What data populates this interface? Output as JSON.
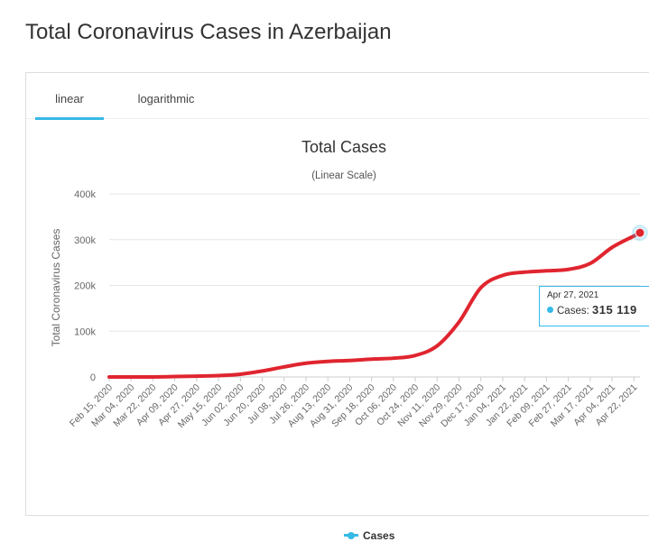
{
  "page": {
    "title": "Total Coronavirus Cases in Azerbaijan"
  },
  "tabs": {
    "linear": "linear",
    "logarithmic": "logarithmic",
    "active": "linear"
  },
  "colors": {
    "line": "#e0252f",
    "accent": "#36b9e6",
    "grid": "#e6e6e6",
    "axis_text": "#666666"
  },
  "tooltip": {
    "date": "Apr 27, 2021",
    "series": "Cases",
    "value": "315 119"
  },
  "chart_data": {
    "type": "line",
    "title": "Total Cases",
    "subtitle": "(Linear Scale)",
    "ylabel": "Total Coronavirus Cases",
    "xlabel": "",
    "ylim": [
      0,
      400000
    ],
    "yticks": [
      "0",
      "100k",
      "200k",
      "300k",
      "400k"
    ],
    "y_tick_values": [
      0,
      100000,
      200000,
      300000,
      400000
    ],
    "grid": true,
    "legend_position": "bottom-center",
    "x_tick_labels": [
      "Feb 15, 2020",
      "Mar 04, 2020",
      "Mar 22, 2020",
      "Apr 09, 2020",
      "Apr 27, 2020",
      "May 15, 2020",
      "Jun 02, 2020",
      "Jun 20, 2020",
      "Jul 08, 2020",
      "Jul 26, 2020",
      "Aug 13, 2020",
      "Aug 31, 2020",
      "Sep 18, 2020",
      "Oct 06, 2020",
      "Oct 24, 2020",
      "Nov 11, 2020",
      "Nov 29, 2020",
      "Dec 17, 2020",
      "Jan 04, 2021",
      "Jan 22, 2021",
      "Feb 09, 2021",
      "Feb 27, 2021",
      "Mar 17, 2021",
      "Apr 04, 2021",
      "Apr 22, 2021"
    ],
    "series": [
      {
        "name": "Cases",
        "color": "#e0252f",
        "x": [
          "Feb 15, 2020",
          "Mar 04, 2020",
          "Mar 22, 2020",
          "Apr 09, 2020",
          "Apr 27, 2020",
          "May 15, 2020",
          "Jun 02, 2020",
          "Jun 20, 2020",
          "Jul 08, 2020",
          "Jul 26, 2020",
          "Aug 13, 2020",
          "Aug 31, 2020",
          "Sep 18, 2020",
          "Oct 06, 2020",
          "Oct 24, 2020",
          "Nov 11, 2020",
          "Nov 29, 2020",
          "Dec 17, 2020",
          "Jan 04, 2021",
          "Jan 22, 2021",
          "Feb 09, 2021",
          "Feb 27, 2021",
          "Mar 17, 2021",
          "Apr 04, 2021",
          "Apr 22, 2021",
          "Apr 27, 2021"
        ],
        "values": [
          0,
          3,
          100,
          900,
          1700,
          3000,
          6000,
          13000,
          22000,
          30000,
          34000,
          36000,
          39000,
          41000,
          47000,
          68000,
          120000,
          195000,
          222000,
          229000,
          232000,
          235000,
          248000,
          283000,
          308000,
          315119
        ]
      }
    ]
  }
}
